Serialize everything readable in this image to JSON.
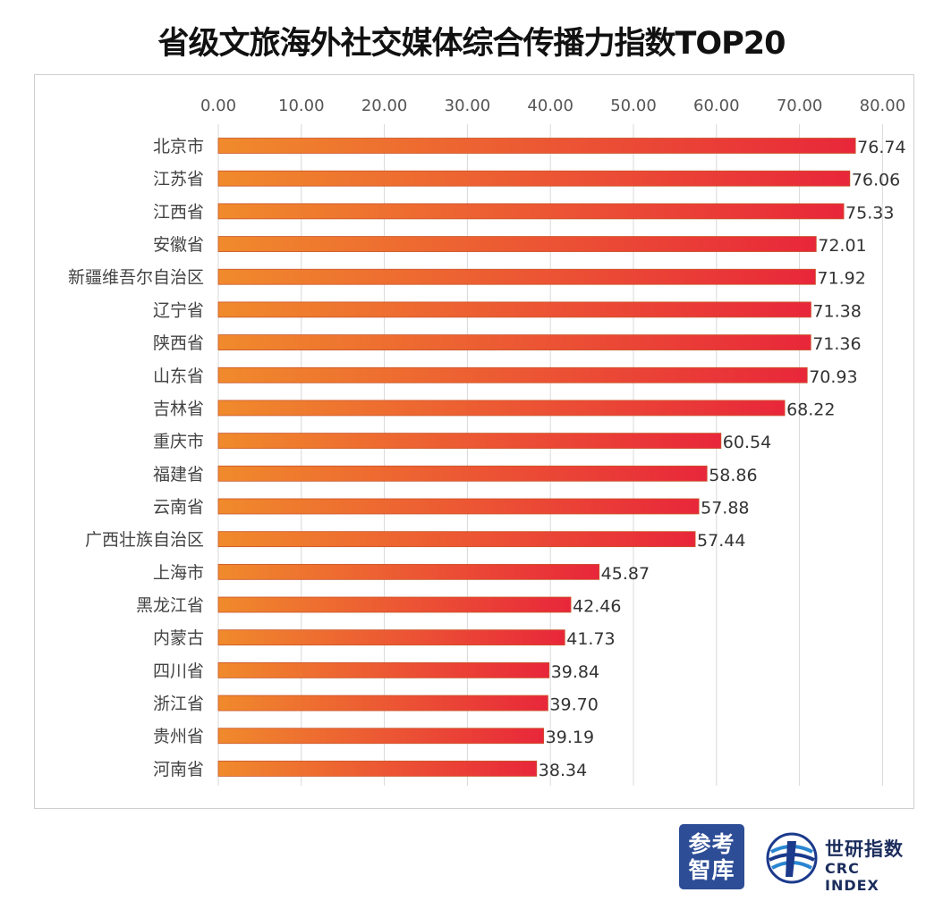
{
  "title": "省级文旅海外社交媒体综合传播力指数TOP20",
  "chart_data": {
    "type": "bar",
    "orientation": "horizontal",
    "title": "省级文旅海外社交媒体综合传播力指数TOP20",
    "xlim": [
      0,
      80
    ],
    "ticks": [
      "0.00",
      "10.00",
      "20.00",
      "30.00",
      "40.00",
      "50.00",
      "60.00",
      "70.00",
      "80.00"
    ],
    "tick_values": [
      0,
      10,
      20,
      30,
      40,
      50,
      60,
      70,
      80
    ],
    "grid": true,
    "categories": [
      "北京市",
      "江苏省",
      "江西省",
      "安徽省",
      "新疆维吾尔自治区",
      "辽宁省",
      "陕西省",
      "山东省",
      "吉林省",
      "重庆市",
      "福建省",
      "云南省",
      "广西壮族自治区",
      "上海市",
      "黑龙江省",
      "内蒙古",
      "四川省",
      "浙江省",
      "贵州省",
      "河南省"
    ],
    "values": [
      76.74,
      76.06,
      75.33,
      72.01,
      71.92,
      71.38,
      71.36,
      70.93,
      68.22,
      60.54,
      58.86,
      57.88,
      57.44,
      45.87,
      42.46,
      41.73,
      39.84,
      39.7,
      39.19,
      38.34
    ],
    "value_labels": [
      "76.74",
      "76.06",
      "75.33",
      "72.01",
      "71.92",
      "71.38",
      "71.36",
      "70.93",
      "68.22",
      "60.54",
      "58.86",
      "57.88",
      "57.44",
      "45.87",
      "42.46",
      "41.73",
      "39.84",
      "39.70",
      "39.19",
      "38.34"
    ],
    "bar_gradient": [
      "#f08a2c",
      "#e8273a"
    ]
  },
  "logos": {
    "cankao": [
      "参考",
      "智库"
    ],
    "crc_name": "世研指数",
    "crc_sub": "CRC INDEX"
  }
}
